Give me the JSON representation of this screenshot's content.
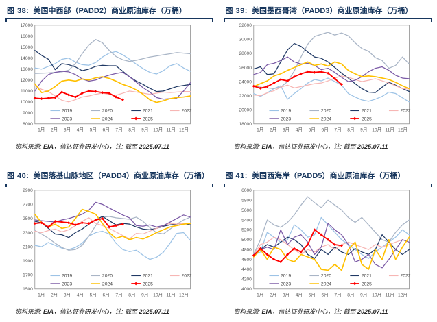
{
  "source": {
    "prefix": "资料来源: ",
    "org": "EIA",
    "mid": "，信达证券研发中心，注: 截至 ",
    "date": "2025.07.11"
  },
  "x_axis_labels": [
    "1月",
    "2月",
    "3月",
    "4月",
    "5月",
    "6月",
    "7月",
    "8月",
    "9月",
    "10月",
    "11月",
    "12月"
  ],
  "legend_rows": [
    [
      "2019",
      "2020",
      "2021",
      "2022"
    ],
    [
      "2023",
      "2024",
      "2025"
    ]
  ],
  "colors": {
    "2019": "#9DC3E6",
    "2020": "#A9B5C6",
    "2021": "#1F3864",
    "2022": "#F7B6B4",
    "2023": "#7B5AA6",
    "2024": "#FFC000",
    "2025": "#FF0000",
    "title": "#17365d",
    "axis_text": "#595959",
    "plot_border": "#8c8c8c"
  },
  "chart_data": [
    {
      "type": "line",
      "fig_label": "图 38:",
      "title": "美国中西部（PADD2）商业原油库存（万桶）",
      "ylim": [
        8000,
        17000
      ],
      "ytick_step": 1000,
      "grid": false,
      "legend_position": "bottom-inside",
      "x_note": "24 semi-monthly points per full year; 2025 ends 2025.07.11",
      "series": [
        {
          "name": "2019",
          "color": "#9DC3E6",
          "values": [
            13100,
            13000,
            13250,
            13500,
            13900,
            14000,
            13650,
            13400,
            13350,
            13600,
            14100,
            14450,
            14600,
            14300,
            13900,
            13450,
            13050,
            12700,
            12550,
            12850,
            13300,
            13500,
            13100,
            12800
          ]
        },
        {
          "name": "2020",
          "color": "#A9B5C6",
          "values": [
            12600,
            12620,
            12650,
            12700,
            12750,
            12900,
            13500,
            14400,
            15200,
            15700,
            15400,
            14700,
            14150,
            13850,
            13700,
            13800,
            13950,
            14100,
            14200,
            14300,
            14400,
            14500,
            14450,
            14400
          ]
        },
        {
          "name": "2021",
          "color": "#1F3864",
          "values": [
            14700,
            14250,
            13900,
            12950,
            13500,
            13400,
            13200,
            12850,
            13000,
            13250,
            13350,
            13300,
            13300,
            12800,
            12300,
            11900,
            11600,
            11250,
            10950,
            11000,
            11200,
            11400,
            11500,
            11600
          ]
        },
        {
          "name": "2022",
          "color": "#F7B6B4",
          "values": [
            11500,
            11150,
            10950,
            10550,
            10150,
            10000,
            10200,
            10450,
            10550,
            10700,
            10800,
            10700,
            10600,
            10800,
            11000,
            10900,
            10800,
            10700,
            10800,
            10900,
            10850,
            10900,
            10950,
            10950
          ]
        },
        {
          "name": "2023",
          "color": "#7B5AA6",
          "values": [
            11000,
            11900,
            12500,
            12700,
            12800,
            12750,
            12500,
            12100,
            11900,
            12000,
            12250,
            12450,
            12600,
            12700,
            12300,
            11800,
            11300,
            10900,
            10400,
            10250,
            10300,
            10350,
            11000,
            11750
          ]
        },
        {
          "name": "2024",
          "color": "#FFC000",
          "values": [
            11650,
            10850,
            11000,
            11400,
            11900,
            12000,
            11900,
            12100,
            12000,
            12200,
            12300,
            12150,
            11900,
            11600,
            11400,
            11100,
            10700,
            10200,
            9950,
            10100,
            10300,
            10400,
            10450,
            10550
          ]
        },
        {
          "name": "2025",
          "color": "#FF0000",
          "marker": true,
          "values": [
            10350,
            10300,
            10350,
            10400,
            10900,
            10650,
            10450,
            10800,
            11000,
            10950,
            10850,
            10800,
            10450,
            10200
          ]
        }
      ]
    },
    {
      "type": "line",
      "fig_label": "图 39:",
      "title": "美国墨西哥湾（PADD3）商业原油库存（万桶）",
      "ylim": [
        18000,
        32000
      ],
      "ytick_step": 2000,
      "grid": false,
      "legend_position": "bottom-inside",
      "x_note": "24 semi-monthly points per full year; 2025 ends 2025.07.11",
      "series": [
        {
          "name": "2019",
          "color": "#9DC3E6",
          "values": [
            22300,
            21900,
            22400,
            23000,
            23400,
            21500,
            22300,
            23000,
            23800,
            24300,
            24100,
            24500,
            24000,
            23500,
            22300,
            21800,
            21400,
            21200,
            21500,
            21900,
            22500,
            22300,
            21700,
            21100
          ]
        },
        {
          "name": "2020",
          "color": "#A9B5C6",
          "values": [
            23400,
            23200,
            23100,
            23000,
            23200,
            24000,
            25500,
            27500,
            29300,
            30400,
            30700,
            31000,
            30600,
            30900,
            30500,
            29500,
            28700,
            28300,
            27400,
            27000,
            25900,
            26300,
            27500,
            26500
          ]
        },
        {
          "name": "2021",
          "color": "#1F3864",
          "values": [
            25800,
            26100,
            25000,
            25100,
            26800,
            28500,
            29400,
            29000,
            28200,
            27500,
            27300,
            26800,
            26000,
            25200,
            24500,
            23700,
            23000,
            22500,
            22450,
            23200,
            23900,
            23500,
            23000,
            22600
          ]
        },
        {
          "name": "2022",
          "color": "#F7B6B4",
          "values": [
            22100,
            22000,
            22400,
            22700,
            23200,
            23500,
            23100,
            23300,
            23500,
            23700,
            23800,
            24100,
            24500,
            24800,
            24600,
            24300,
            24000,
            24200,
            24400,
            24100,
            23800,
            23400,
            23000,
            22950
          ]
        },
        {
          "name": "2023",
          "color": "#7B5AA6",
          "values": [
            25000,
            25300,
            26400,
            26600,
            27000,
            27500,
            26800,
            26500,
            26600,
            26300,
            25700,
            25900,
            25300,
            24600,
            24000,
            24200,
            24700,
            25400,
            25900,
            26100,
            25600,
            24900,
            24500,
            24400
          ]
        },
        {
          "name": "2024",
          "color": "#FFC000",
          "values": [
            23300,
            23700,
            24100,
            24800,
            25100,
            25600,
            26000,
            26400,
            26800,
            26300,
            26500,
            26200,
            26800,
            26500,
            25600,
            25100,
            24700,
            24800,
            24700,
            24500,
            24300,
            23900,
            23400,
            23000
          ]
        },
        {
          "name": "2025",
          "color": "#FF0000",
          "marker": true,
          "values": [
            23350,
            23050,
            23300,
            23800,
            24300,
            24100,
            24700,
            25100,
            25400,
            25300,
            25400,
            25200,
            24400,
            23600
          ]
        }
      ]
    },
    {
      "type": "line",
      "fig_label": "图 40:",
      "title": "美国落基山脉地区（PADD4）商业原油库存（万桶）",
      "ylim": [
        1500,
        2900
      ],
      "ytick_step": 200,
      "grid": false,
      "legend_position": "bottom-inside",
      "x_note": "24 semi-monthly points per full year; 2025 ends 2025.07.11",
      "series": [
        {
          "name": "2019",
          "color": "#9DC3E6",
          "values": [
            2120,
            2100,
            2160,
            2120,
            2080,
            2060,
            2090,
            2150,
            2250,
            2300,
            2320,
            2280,
            2150,
            2060,
            2030,
            2050,
            1980,
            1920,
            1950,
            2020,
            2150,
            2290,
            2300,
            2190
          ]
        },
        {
          "name": "2020",
          "color": "#A9B5C6",
          "values": [
            2330,
            2280,
            2220,
            2150,
            2090,
            2050,
            2060,
            2120,
            2250,
            2400,
            2520,
            2530,
            2510,
            2500,
            2490,
            2520,
            2460,
            2370,
            2300,
            2280,
            2350,
            2420,
            2480,
            2520
          ]
        },
        {
          "name": "2021",
          "color": "#1F3864",
          "values": [
            2460,
            2440,
            2360,
            2280,
            2270,
            2230,
            2300,
            2350,
            2420,
            2480,
            2530,
            2470,
            2410,
            2430,
            2420,
            2380,
            2350,
            2340,
            2360,
            2390,
            2410,
            2420,
            2430,
            2410
          ]
        },
        {
          "name": "2022",
          "color": "#F7B6B4",
          "values": [
            2320,
            2300,
            2330,
            2350,
            2310,
            2340,
            2400,
            2460,
            2510,
            2430,
            2400,
            2360,
            2310,
            2260,
            2210,
            2290,
            2280,
            2320,
            2360,
            2400,
            2430,
            2420,
            2430,
            2430
          ]
        },
        {
          "name": "2023",
          "color": "#7B5AA6",
          "values": [
            2480,
            2470,
            2460,
            2450,
            2480,
            2500,
            2530,
            2560,
            2620,
            2730,
            2700,
            2650,
            2600,
            2550,
            2510,
            2400,
            2390,
            2410,
            2380,
            2400,
            2450,
            2500,
            2550,
            2520
          ]
        },
        {
          "name": "2024",
          "color": "#FFC000",
          "values": [
            2560,
            2440,
            2380,
            2420,
            2360,
            2380,
            2500,
            2630,
            2600,
            2560,
            2430,
            2300,
            2220,
            2250,
            2200,
            2230,
            2210,
            2250,
            2300,
            2340,
            2380,
            2400,
            2420,
            2430
          ]
        },
        {
          "name": "2025",
          "color": "#FF0000",
          "marker": true,
          "values": [
            2430,
            2440,
            2380,
            2460,
            2450,
            2440,
            2410,
            2440,
            2430,
            2480,
            2500,
            2380,
            2400,
            2420
          ]
        }
      ]
    },
    {
      "type": "line",
      "fig_label": "图 41:",
      "title": "美国西海岸（PADD5）商业原油库存（万桶）",
      "ylim": [
        4000,
        6000
      ],
      "ytick_step": 200,
      "grid": false,
      "legend_position": "bottom-inside",
      "x_note": "24 semi-monthly points per full year; 2025 ends 2025.07.11",
      "series": [
        {
          "name": "2019",
          "color": "#9DC3E6",
          "values": [
            4680,
            4750,
            5150,
            5050,
            4950,
            5000,
            5300,
            5200,
            5050,
            5100,
            5450,
            5300,
            5150,
            5000,
            4900,
            4800,
            4700,
            4620,
            4750,
            4850,
            4950,
            5050,
            5200,
            5100
          ]
        },
        {
          "name": "2020",
          "color": "#A9B5C6",
          "values": [
            4700,
            5000,
            5400,
            5300,
            5250,
            5350,
            5500,
            5700,
            5870,
            5750,
            5650,
            5800,
            5700,
            5600,
            5450,
            5350,
            5450,
            5300,
            5150,
            5000,
            4950,
            5150,
            5300,
            5400
          ]
        },
        {
          "name": "2021",
          "color": "#1F3864",
          "values": [
            4650,
            4800,
            4900,
            4850,
            4950,
            5050,
            5000,
            4900,
            4700,
            4620,
            4800,
            4700,
            4850,
            4750,
            4700,
            4820,
            4750,
            4700,
            4800,
            5100,
            4950,
            4800,
            4700,
            4800
          ]
        },
        {
          "name": "2022",
          "color": "#F7B6B4",
          "values": [
            4700,
            4900,
            4950,
            5050,
            5000,
            4900,
            4800,
            4700,
            4800,
            4750,
            4850,
            4900,
            4800,
            4900,
            4950,
            4900,
            4850,
            4800,
            4900,
            4850,
            4900,
            4950,
            5000,
            4950
          ]
        },
        {
          "name": "2023",
          "color": "#7B5AA6",
          "values": [
            4700,
            4800,
            4850,
            4800,
            5200,
            4900,
            5050,
            5100,
            4950,
            4700,
            4850,
            5330,
            5200,
            5100,
            4900,
            4550,
            4600,
            4700,
            4500,
            4430,
            4600,
            4800,
            5000,
            4950
          ]
        },
        {
          "name": "2024",
          "color": "#FFC000",
          "values": [
            4650,
            4800,
            4600,
            4850,
            4800,
            4600,
            4550,
            4700,
            4650,
            4600,
            4400,
            4380,
            4500,
            4380,
            4800,
            4950,
            4500,
            4400,
            4800,
            4600,
            5000,
            4600,
            4850,
            5050
          ]
        },
        {
          "name": "2025",
          "color": "#FF0000",
          "marker": true,
          "values": [
            4680,
            4820,
            4700,
            4600,
            4550,
            4700,
            4820,
            4750,
            4900,
            5200,
            5100,
            5000,
            4900,
            4880
          ]
        }
      ]
    }
  ]
}
